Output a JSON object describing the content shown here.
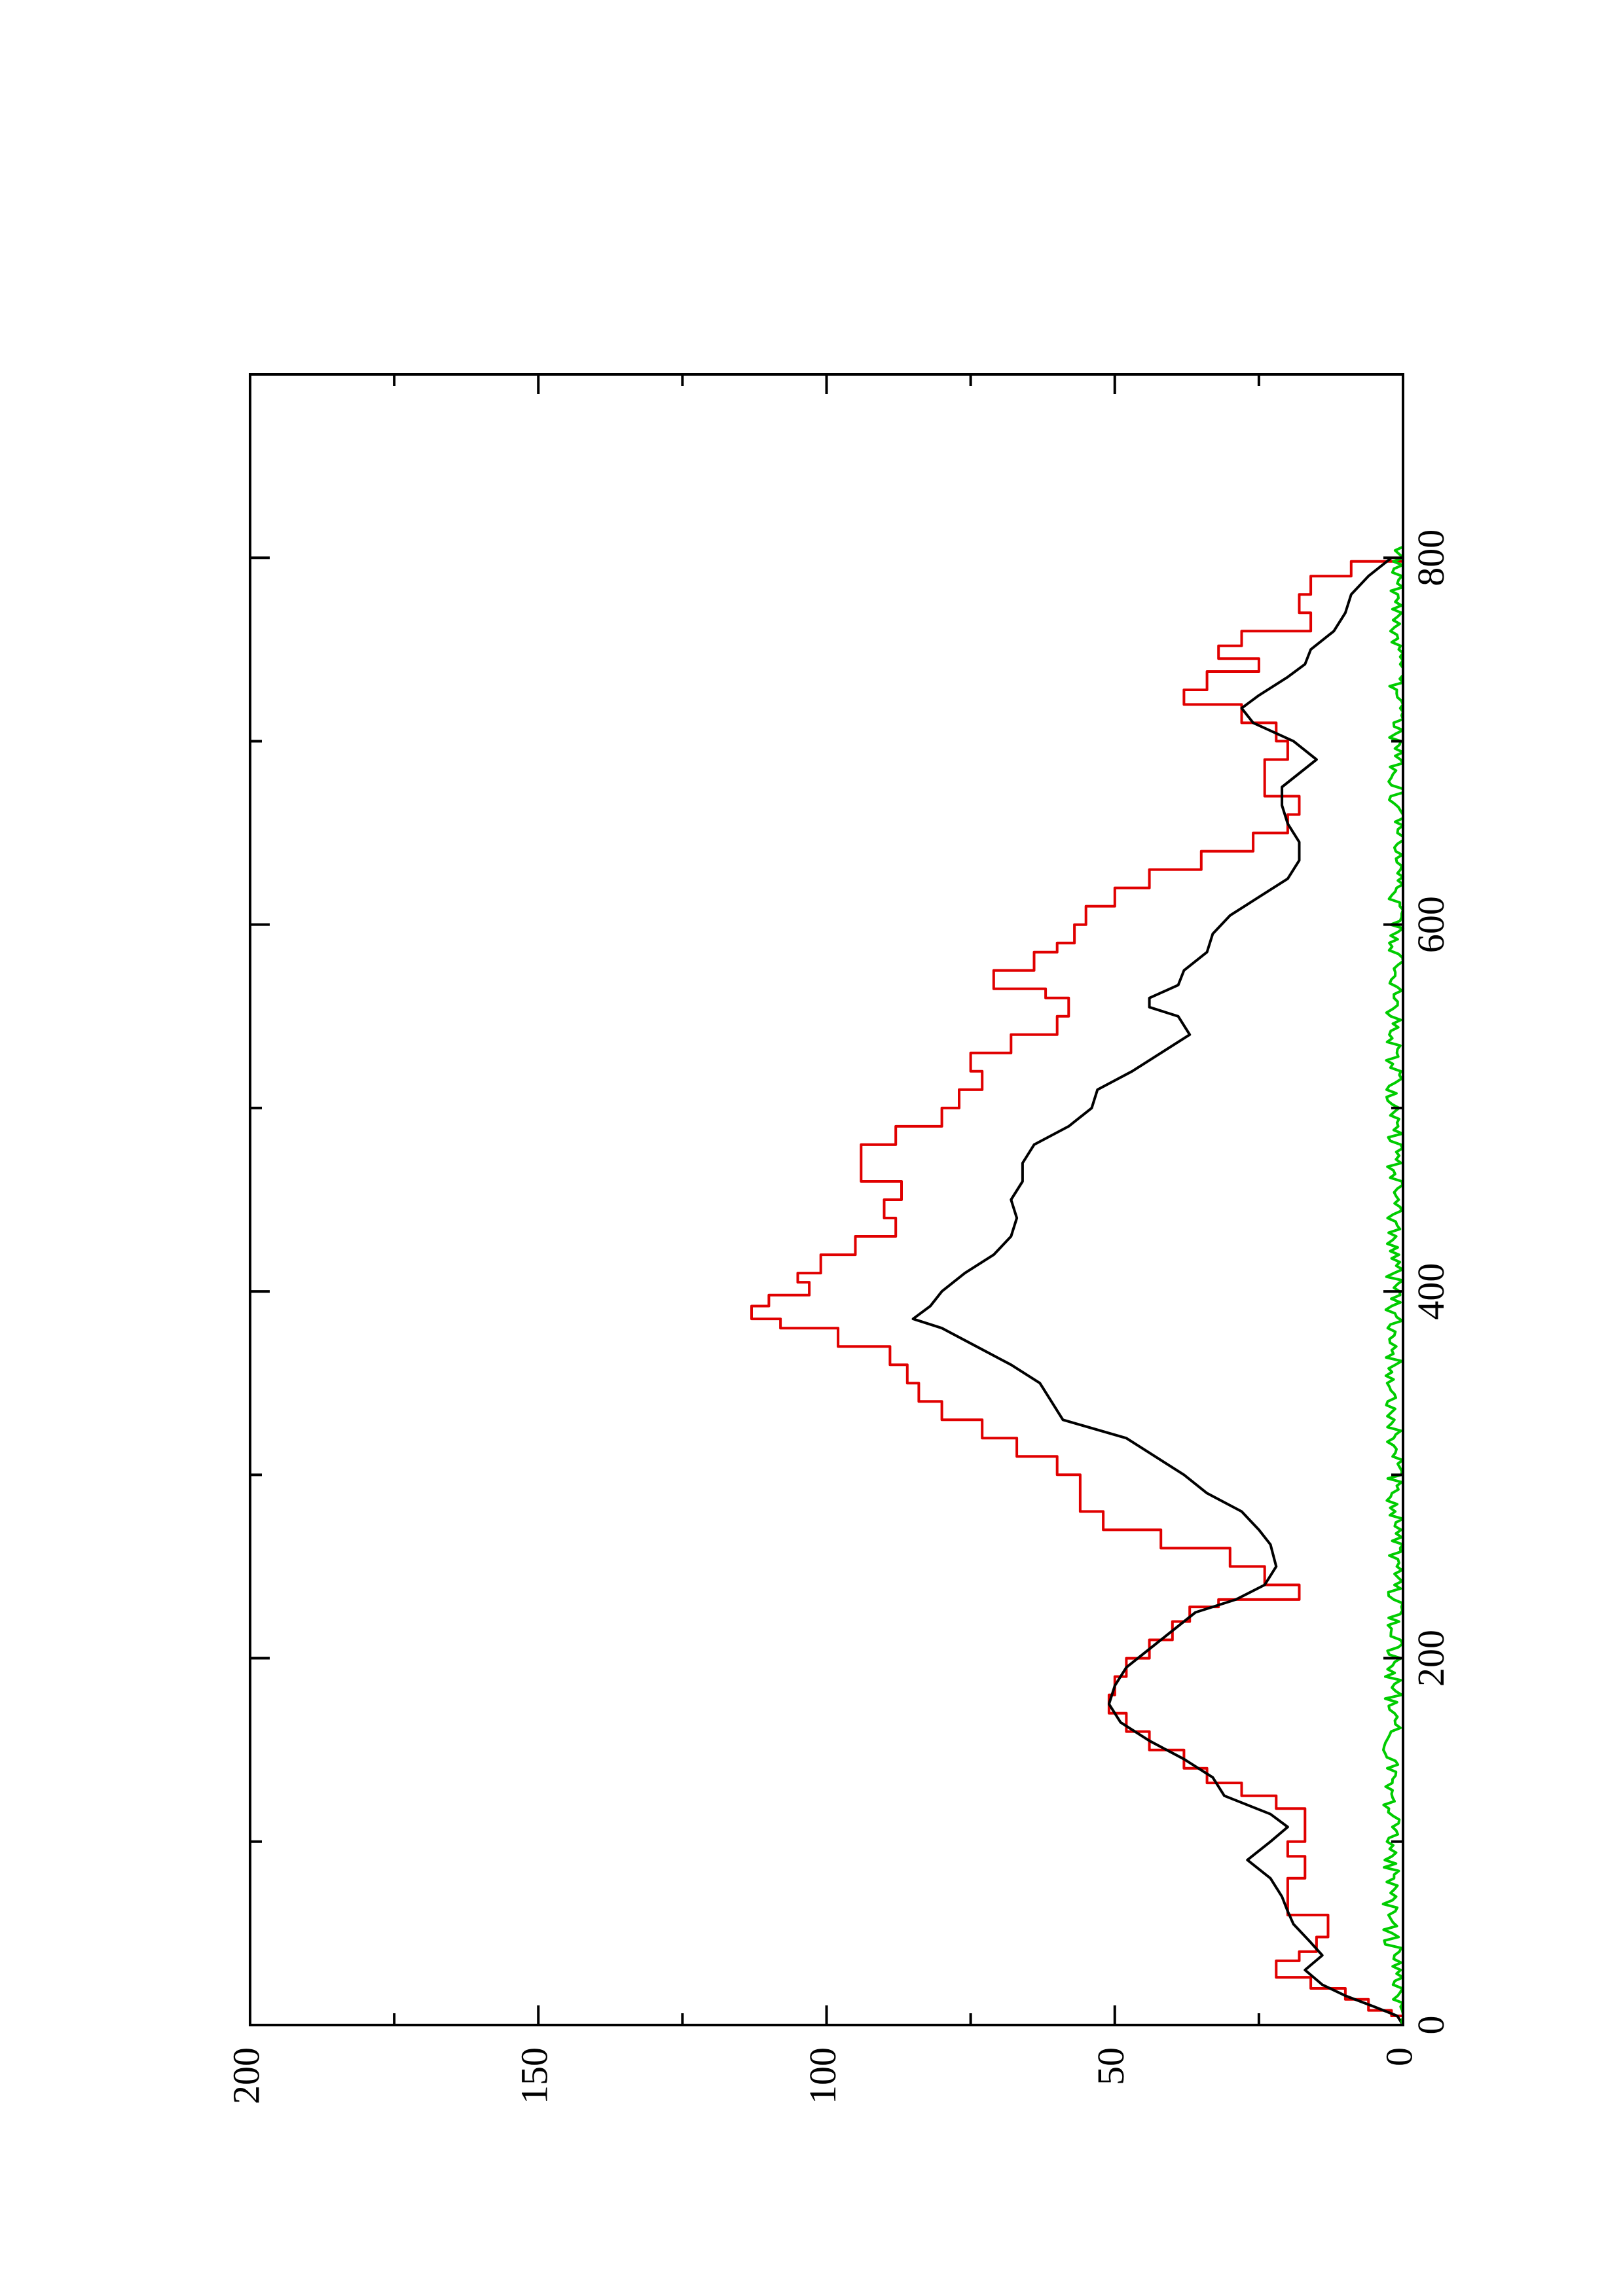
{
  "chart_data": {
    "type": "line",
    "title": "",
    "xlabel": "",
    "ylabel": "",
    "orientation": "rotated-90-ccw",
    "xlim": [
      0,
      900
    ],
    "ylim": [
      0,
      200
    ],
    "x_ticks": [
      0,
      200,
      400,
      600,
      800
    ],
    "x_tick_labels": [
      "0",
      "200",
      "400",
      "600",
      "800"
    ],
    "x_minor_ticks": [
      100,
      300,
      500,
      700
    ],
    "y_ticks": [
      0,
      50,
      100,
      150,
      200
    ],
    "y_tick_labels": [
      "0",
      "50",
      "100",
      "150",
      "200"
    ],
    "y_minor_ticks": [
      25,
      75,
      125,
      175
    ],
    "grid": false,
    "legend": "none",
    "series": [
      {
        "color": "#e00000",
        "style": "step",
        "points": [
          [
            0,
            0
          ],
          [
            5,
            2
          ],
          [
            8,
            6
          ],
          [
            14,
            10
          ],
          [
            20,
            16
          ],
          [
            26,
            22
          ],
          [
            35,
            18
          ],
          [
            40,
            15
          ],
          [
            48,
            13
          ],
          [
            60,
            20
          ],
          [
            72,
            20
          ],
          [
            80,
            17
          ],
          [
            92,
            20
          ],
          [
            100,
            17
          ],
          [
            112,
            17
          ],
          [
            118,
            22
          ],
          [
            125,
            28
          ],
          [
            132,
            34
          ],
          [
            140,
            38
          ],
          [
            150,
            44
          ],
          [
            160,
            48
          ],
          [
            170,
            51
          ],
          [
            180,
            50
          ],
          [
            190,
            48
          ],
          [
            200,
            44
          ],
          [
            210,
            40
          ],
          [
            220,
            37
          ],
          [
            228,
            32
          ],
          [
            232,
            18
          ],
          [
            240,
            24
          ],
          [
            250,
            30
          ],
          [
            260,
            42
          ],
          [
            270,
            52
          ],
          [
            280,
            56
          ],
          [
            290,
            56
          ],
          [
            300,
            60
          ],
          [
            310,
            67
          ],
          [
            320,
            73
          ],
          [
            330,
            80
          ],
          [
            340,
            84
          ],
          [
            350,
            86
          ],
          [
            360,
            89
          ],
          [
            370,
            98
          ],
          [
            380,
            108
          ],
          [
            385,
            113
          ],
          [
            392,
            110
          ],
          [
            398,
            103
          ],
          [
            405,
            105
          ],
          [
            410,
            101
          ],
          [
            420,
            95
          ],
          [
            430,
            88
          ],
          [
            440,
            90
          ],
          [
            450,
            87
          ],
          [
            460,
            94
          ],
          [
            470,
            94
          ],
          [
            480,
            88
          ],
          [
            490,
            80
          ],
          [
            500,
            77
          ],
          [
            510,
            73
          ],
          [
            520,
            75
          ],
          [
            530,
            68
          ],
          [
            540,
            60
          ],
          [
            550,
            58
          ],
          [
            560,
            62
          ],
          [
            565,
            71
          ],
          [
            575,
            64
          ],
          [
            585,
            60
          ],
          [
            590,
            57
          ],
          [
            600,
            55
          ],
          [
            610,
            50
          ],
          [
            620,
            44
          ],
          [
            630,
            35
          ],
          [
            640,
            26
          ],
          [
            650,
            20
          ],
          [
            660,
            18
          ],
          [
            670,
            24
          ],
          [
            680,
            24
          ],
          [
            690,
            20
          ],
          [
            700,
            22
          ],
          [
            710,
            28
          ],
          [
            720,
            38
          ],
          [
            728,
            34
          ],
          [
            738,
            25
          ],
          [
            745,
            32
          ],
          [
            752,
            28
          ],
          [
            760,
            16
          ],
          [
            770,
            18
          ],
          [
            780,
            16
          ],
          [
            790,
            9
          ],
          [
            798,
            0
          ]
        ]
      },
      {
        "color": "#000000",
        "style": "line",
        "points": [
          [
            0,
            0
          ],
          [
            5,
            1
          ],
          [
            10,
            5
          ],
          [
            16,
            10
          ],
          [
            22,
            14
          ],
          [
            30,
            17
          ],
          [
            38,
            14
          ],
          [
            45,
            16
          ],
          [
            55,
            19
          ],
          [
            62,
            20
          ],
          [
            70,
            21
          ],
          [
            80,
            23
          ],
          [
            90,
            27
          ],
          [
            100,
            23
          ],
          [
            108,
            20
          ],
          [
            115,
            23
          ],
          [
            125,
            31
          ],
          [
            135,
            33
          ],
          [
            145,
            38
          ],
          [
            155,
            44
          ],
          [
            165,
            49
          ],
          [
            175,
            51
          ],
          [
            185,
            50
          ],
          [
            195,
            48
          ],
          [
            205,
            44
          ],
          [
            215,
            40
          ],
          [
            225,
            36
          ],
          [
            232,
            29
          ],
          [
            240,
            24
          ],
          [
            250,
            22
          ],
          [
            262,
            23
          ],
          [
            270,
            25
          ],
          [
            280,
            28
          ],
          [
            290,
            34
          ],
          [
            300,
            38
          ],
          [
            310,
            43
          ],
          [
            320,
            48
          ],
          [
            330,
            59
          ],
          [
            340,
            61
          ],
          [
            350,
            63
          ],
          [
            360,
            68
          ],
          [
            370,
            74
          ],
          [
            380,
            80
          ],
          [
            385,
            85
          ],
          [
            392,
            82
          ],
          [
            400,
            80
          ],
          [
            410,
            76
          ],
          [
            420,
            71
          ],
          [
            430,
            68
          ],
          [
            440,
            67
          ],
          [
            450,
            68
          ],
          [
            460,
            66
          ],
          [
            470,
            66
          ],
          [
            480,
            64
          ],
          [
            490,
            58
          ],
          [
            500,
            54
          ],
          [
            510,
            53
          ],
          [
            520,
            47
          ],
          [
            530,
            42
          ],
          [
            540,
            37
          ],
          [
            550,
            39
          ],
          [
            555,
            44
          ],
          [
            560,
            44
          ],
          [
            567,
            39
          ],
          [
            575,
            38
          ],
          [
            585,
            34
          ],
          [
            595,
            33
          ],
          [
            605,
            30
          ],
          [
            615,
            25
          ],
          [
            625,
            20
          ],
          [
            635,
            18
          ],
          [
            645,
            18
          ],
          [
            655,
            20
          ],
          [
            665,
            21
          ],
          [
            675,
            21
          ],
          [
            685,
            17
          ],
          [
            690,
            15
          ],
          [
            700,
            19
          ],
          [
            710,
            26
          ],
          [
            718,
            28
          ],
          [
            725,
            25
          ],
          [
            735,
            20
          ],
          [
            742,
            17
          ],
          [
            750,
            16
          ],
          [
            760,
            12
          ],
          [
            770,
            10
          ],
          [
            780,
            9
          ],
          [
            790,
            6
          ],
          [
            800,
            2
          ]
        ]
      },
      {
        "color": "#00cc00",
        "style": "line",
        "noise_level": 1.5,
        "points": [
          [
            0,
            0
          ],
          [
            50,
            2
          ],
          [
            100,
            2
          ],
          [
            150,
            2
          ],
          [
            200,
            1.5
          ],
          [
            250,
            1.5
          ],
          [
            300,
            1.5
          ],
          [
            350,
            1.5
          ],
          [
            400,
            1.5
          ],
          [
            450,
            1.5
          ],
          [
            500,
            1.5
          ],
          [
            550,
            1.5
          ],
          [
            600,
            1
          ],
          [
            650,
            1
          ],
          [
            700,
            1
          ],
          [
            750,
            1
          ],
          [
            800,
            1
          ],
          [
            810,
            0
          ]
        ]
      }
    ]
  }
}
